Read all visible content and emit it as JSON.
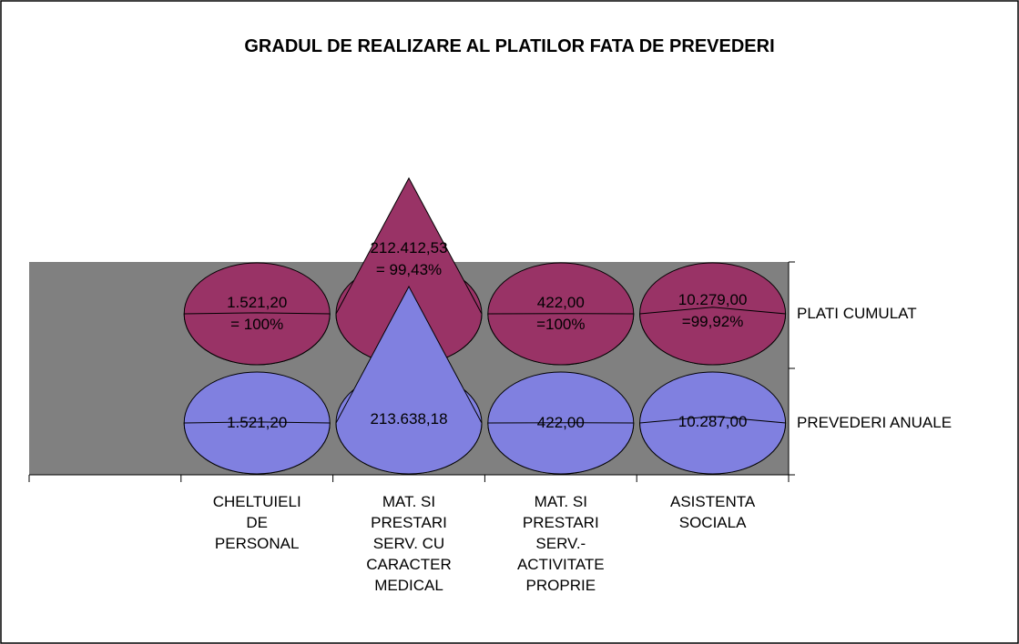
{
  "chart_data": {
    "type": "cone3d",
    "title": "GRADUL DE REALIZARE AL PLATILOR FATA DE PREVEDERI",
    "categories": [
      null,
      "CHELTUIELI DE PERSONAL",
      "MAT. SI PRESTARI SERV. CU CARACTER MEDICAL",
      "MAT. SI PRESTARI SERV.- ACTIVITATE PROPRIE",
      "ASISTENTA SOCIALA"
    ],
    "series": [
      {
        "name": "PLATI CUMULAT",
        "color": "#993366",
        "values": [
          null,
          1521.2,
          212412.53,
          422.0,
          10279.0
        ],
        "value_labels": [
          null,
          "1.521,20\n= 100%",
          "212.412,53\n= 99,43%",
          "422,00\n=100%",
          "10.279,00\n=99,92%"
        ]
      },
      {
        "name": "PREVEDERI ANUALE",
        "color": "#8080e0",
        "values": [
          null,
          1521.2,
          213638.18,
          422.0,
          10287.0
        ],
        "value_labels": [
          null,
          "1.521,20",
          "213.638,18",
          "422,00",
          "10.287,00"
        ]
      }
    ]
  }
}
